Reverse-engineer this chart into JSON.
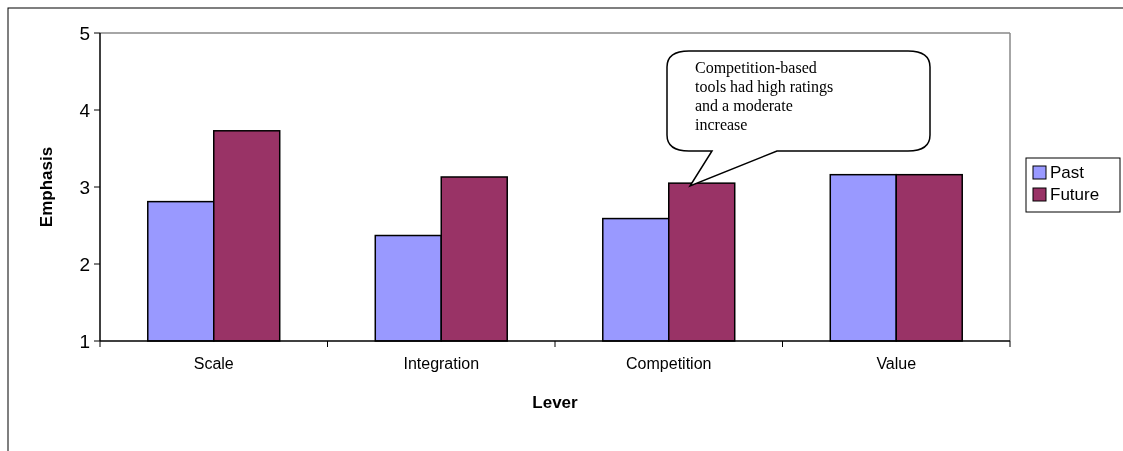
{
  "chart_data": {
    "type": "bar",
    "xlabel": "Lever",
    "ylabel": "Emphasis",
    "categories": [
      "Scale",
      "Integration",
      "Competition",
      "Value"
    ],
    "series": [
      {
        "name": "Past",
        "color": "#9999ff",
        "values": [
          2.81,
          2.37,
          2.59,
          3.16
        ]
      },
      {
        "name": "Future",
        "color": "#993366",
        "values": [
          3.73,
          3.13,
          3.05,
          3.16
        ]
      }
    ],
    "ylim": [
      1,
      5
    ],
    "yticks": [
      1,
      2,
      3,
      4,
      5
    ],
    "grid": false,
    "legend": "right",
    "annotations": [
      "Competition-based tools had high ratings and a moderate increase"
    ]
  }
}
